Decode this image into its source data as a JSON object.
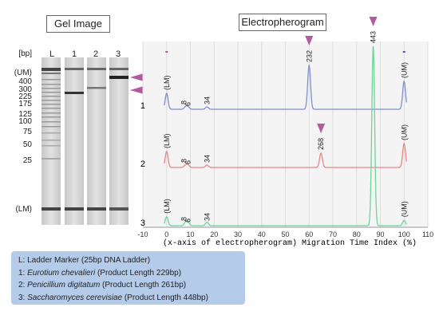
{
  "gel_title": "Gel Image",
  "ep_title": "Electropherogram",
  "bp_unit": "[bp]",
  "lane_labels": [
    "L",
    "1",
    "2",
    "3"
  ],
  "gel_marker_labels": [
    "(UM)",
    "400",
    "300",
    "225",
    "175",
    "125",
    "100",
    "75",
    "50",
    "25",
    "(LM)"
  ],
  "legend": [
    {
      "prefix": "L: Ladder Marker (25bp DNA Ladder)",
      "italic": "",
      "suffix": ""
    },
    {
      "prefix": "1: ",
      "italic": "Eurotium chevalieri",
      "suffix": " (Product Length 229bp)"
    },
    {
      "prefix": "2: ",
      "italic": "Penicillium digitatum",
      "suffix": " (Product Length 261bp)"
    },
    {
      "prefix": "3: ",
      "italic": "Saccharomyces cerevisiae",
      "suffix": " (Product Length 448bp)"
    }
  ],
  "colors": {
    "trace1": "#7d8fd0",
    "trace2": "#ea8585",
    "trace3": "#6fd39b",
    "arrow": "#b45aa0",
    "panel_bg": "#f4f4f4",
    "legend_bg": "#b4ccea"
  },
  "chart_data": {
    "type": "line",
    "title": "Electropherogram",
    "xlabel": "(x-axis of electropherogram) Migration Time Index (%)",
    "xlim": [
      -10,
      110
    ],
    "x_ticks": [
      "-10",
      "0",
      "10",
      "20",
      "30",
      "40",
      "50",
      "60",
      "70",
      "80",
      "90",
      "100",
      "110"
    ],
    "series": [
      {
        "name": "1",
        "color": "#7d8fd0",
        "peaks": [
          {
            "x": 0,
            "height": 0.2,
            "label": "(LM)"
          },
          {
            "x": 8,
            "height": 0.03,
            "label": "8"
          },
          {
            "x": 9,
            "height": 0.03,
            "label": "6"
          },
          {
            "x": 17,
            "height": 0.03,
            "label": "34"
          },
          {
            "x": 60,
            "height": 0.55,
            "label": "232",
            "arrow": true
          },
          {
            "x": 100,
            "height": 0.35,
            "label": "(UM)"
          }
        ]
      },
      {
        "name": "2",
        "color": "#ea8585",
        "peaks": [
          {
            "x": 0,
            "height": 0.2,
            "label": "(LM)"
          },
          {
            "x": 8,
            "height": 0.03,
            "label": "8"
          },
          {
            "x": 9,
            "height": 0.03,
            "label": "6"
          },
          {
            "x": 17,
            "height": 0.03,
            "label": "34"
          },
          {
            "x": 65,
            "height": 0.18,
            "label": "268",
            "arrow": true
          },
          {
            "x": 100,
            "height": 0.3,
            "label": "(UM)"
          }
        ]
      },
      {
        "name": "3",
        "color": "#6fd39b",
        "peaks": [
          {
            "x": 0,
            "height": 0.05,
            "label": "(LM)"
          },
          {
            "x": 8,
            "height": 0.02,
            "label": "8"
          },
          {
            "x": 9,
            "height": 0.02,
            "label": "6"
          },
          {
            "x": 17,
            "height": 0.02,
            "label": "34"
          },
          {
            "x": 87,
            "height": 1.0,
            "label": "443",
            "arrow": true
          },
          {
            "x": 100,
            "height": 0.03,
            "label": "(UM)"
          }
        ]
      }
    ]
  }
}
